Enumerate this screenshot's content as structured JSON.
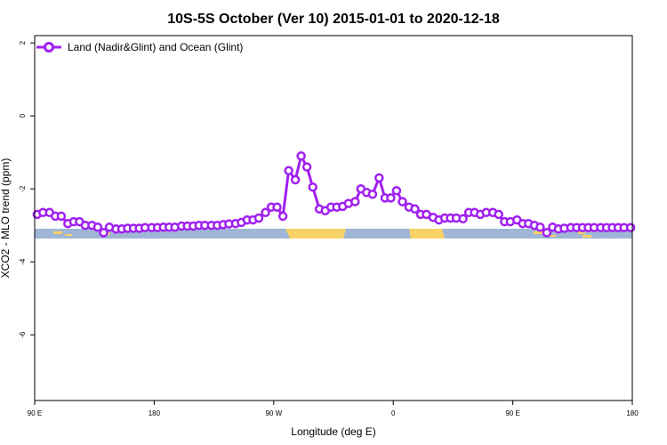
{
  "chart_data": {
    "type": "line",
    "title": "10S-5S October (Ver 10)   2015-01-01 to 2020-12-18",
    "xlabel": "Longitude (deg E)",
    "ylabel": "XCO2 - MLO trend (ppm)",
    "xlim": [
      90,
      450
    ],
    "ylim": [
      -7.8,
      2.2
    ],
    "x_ticks": [
      {
        "value": 90,
        "label": "90 E"
      },
      {
        "value": 162,
        "label": "180"
      },
      {
        "value": 234,
        "label": "90 W"
      },
      {
        "value": 306,
        "label": "0"
      },
      {
        "value": 378,
        "label": "90 E"
      },
      {
        "value": 450,
        "label": "180"
      }
    ],
    "y_ticks": [
      {
        "value": 2,
        "label": "2"
      },
      {
        "value": 0,
        "label": "0"
      },
      {
        "value": -2,
        "label": "-2"
      },
      {
        "value": -4,
        "label": "-4"
      },
      {
        "value": -6,
        "label": "-6"
      }
    ],
    "grid": false,
    "legend_position": "top-left",
    "series": [
      {
        "name": "Land (Nadir&Glint) and Ocean (Glint)",
        "color": "#a020f0",
        "x": [
          91.5,
          95,
          99,
          102.5,
          106,
          110,
          113.5,
          117,
          120.5,
          124.5,
          128,
          131.5,
          135,
          139,
          142.5,
          146,
          149.5,
          153,
          156.5,
          160.5,
          164,
          167.5,
          171,
          174.5,
          178.5,
          182,
          185.5,
          189,
          192.5,
          196.5,
          200,
          203.5,
          207,
          211,
          214.5,
          218,
          221.5,
          225,
          229,
          232.5,
          236,
          239.5,
          243,
          247,
          250.5,
          254,
          257.5,
          261.5,
          265,
          268.5,
          272,
          275.5,
          279,
          283,
          286.5,
          290,
          293.5,
          297.5,
          301,
          304.5,
          308,
          311.5,
          315.5,
          319,
          322.5,
          326,
          330,
          333.5,
          337,
          340.5,
          344,
          348,
          351.5,
          355,
          358.5,
          362,
          366,
          369.5,
          373,
          376.5,
          380.5,
          384,
          387.5,
          391,
          394.5,
          398.5,
          402,
          405.5,
          409,
          413,
          416.5,
          420,
          423.5,
          427,
          431,
          434.5,
          438,
          441.5,
          445,
          449
        ],
        "y": [
          -2.7,
          -2.65,
          -2.65,
          -2.75,
          -2.75,
          -2.95,
          -2.9,
          -2.9,
          -3.0,
          -3.0,
          -3.05,
          -3.2,
          -3.05,
          -3.1,
          -3.1,
          -3.08,
          -3.08,
          -3.08,
          -3.06,
          -3.06,
          -3.06,
          -3.05,
          -3.05,
          -3.05,
          -3.02,
          -3.02,
          -3.02,
          -3.0,
          -3.0,
          -3.0,
          -3.0,
          -2.98,
          -2.96,
          -2.95,
          -2.92,
          -2.85,
          -2.85,
          -2.8,
          -2.65,
          -2.5,
          -2.5,
          -2.75,
          -1.5,
          -1.75,
          -1.1,
          -1.4,
          -1.95,
          -2.55,
          -2.6,
          -2.5,
          -2.5,
          -2.48,
          -2.4,
          -2.35,
          -2.0,
          -2.1,
          -2.15,
          -1.7,
          -2.25,
          -2.25,
          -2.05,
          -2.35,
          -2.5,
          -2.55,
          -2.7,
          -2.7,
          -2.78,
          -2.85,
          -2.8,
          -2.8,
          -2.8,
          -2.82,
          -2.65,
          -2.65,
          -2.7,
          -2.65,
          -2.65,
          -2.7,
          -2.9,
          -2.9,
          -2.85,
          -2.95,
          -2.95,
          -3.0,
          -3.05,
          -3.2,
          -3.05,
          -3.1,
          -3.08,
          -3.06,
          -3.06,
          -3.06,
          -3.06,
          -3.06,
          -3.06,
          -3.06,
          -3.06,
          -3.06,
          -3.06,
          -3.06
        ]
      }
    ],
    "colors": {
      "ocean": "#9fb6d6",
      "land": "#f7d267",
      "series": "#a020f0"
    }
  }
}
